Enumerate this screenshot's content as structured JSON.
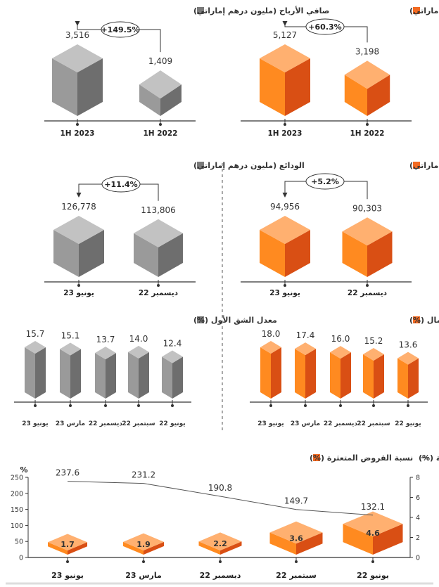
{
  "colors": {
    "orange_front": "#ff8a20",
    "orange_side": "#d94f14",
    "orange_top": "#ffb070",
    "gray_front": "#9a9a9a",
    "gray_side": "#6e6e6e",
    "gray_top": "#c2c2c2",
    "orange_marker": "#f26a22",
    "gray_marker": "#7a7a7a"
  },
  "chart_data": [
    {
      "type": "bar",
      "title": "الدخل التشغيلي (مليون درهم إماراتي)",
      "categories": [
        "1H 2023",
        "1H 2022"
      ],
      "values": [
        5127,
        3198
      ],
      "value_labels": [
        "5,127",
        "3,198"
      ],
      "change": "+60.3%",
      "color": "orange"
    },
    {
      "type": "bar",
      "title": "صافي الأرباح (مليون درهم إماراتي)",
      "categories": [
        "1H 2023",
        "1H 2022"
      ],
      "values": [
        3516,
        1409
      ],
      "value_labels": [
        "3,516",
        "1,409"
      ],
      "change": "+149.5%",
      "color": "gray"
    },
    {
      "type": "bar",
      "title": "القروض (مليون درهم إماراتي)",
      "categories": [
        "يونيو 23",
        "ديسمبر 22"
      ],
      "values": [
        94956,
        90303
      ],
      "value_labels": [
        "94,956",
        "90,303"
      ],
      "change": "+5.2%",
      "color": "orange"
    },
    {
      "type": "bar",
      "title": "الودائع (مليون درهم إماراتي)",
      "categories": [
        "يونيو 23",
        "ديسمبر 22"
      ],
      "values": [
        126778,
        113806
      ],
      "value_labels": [
        "126,778",
        "113,806"
      ],
      "change": "+11.4%",
      "color": "gray"
    },
    {
      "type": "bar",
      "title": "معدل كفاية راس المال (%)",
      "categories": [
        "يونيو 23",
        "مارس 23",
        "ديسمبر 22",
        "سبتمبر 22",
        "يونيو 22"
      ],
      "values": [
        18.0,
        17.4,
        16.0,
        15.2,
        13.6
      ],
      "value_labels": [
        "18.0",
        "17.4",
        "16.0",
        "15.2",
        "13.6"
      ],
      "color": "orange"
    },
    {
      "type": "bar",
      "title": "معدل الشق الأول (%)",
      "categories": [
        "يونيو 23",
        "مارس 23",
        "ديسمبر 22",
        "سبتمبر 22",
        "يونيو 22"
      ],
      "values": [
        15.7,
        15.1,
        13.7,
        14.0,
        12.4
      ],
      "value_labels": [
        "15.7",
        "15.1",
        "13.7",
        "14.0",
        "12.4"
      ],
      "color": "gray"
    },
    {
      "type": "bar",
      "legend": [
        "نسبة القروض المتعثرة (%)",
        "نسبة التغطية (%)"
      ],
      "unit_label": "%",
      "categories": [
        "يونيو 23",
        "مارس 23",
        "ديسمبر 22",
        "سبتمبر 22",
        "يونيو 22"
      ],
      "series": [
        {
          "name": "نسبة القروض المتعثرة (%)",
          "type": "bar",
          "axis": "right",
          "values": [
            1.7,
            1.9,
            2.2,
            3.6,
            4.6
          ],
          "value_labels": [
            "1.7",
            "1.9",
            "2.2",
            "3.6",
            "4.6"
          ]
        },
        {
          "name": "نسبة التغطية (%)",
          "type": "line",
          "axis": "left",
          "values": [
            237.6,
            231.2,
            190.8,
            149.7,
            132.1
          ],
          "value_labels": [
            "237.6",
            "231.2",
            "190.8",
            "149.7",
            "132.1"
          ]
        }
      ],
      "left_axis": {
        "ylim": [
          0,
          250
        ],
        "ticks": [
          "0",
          "50",
          "100",
          "150",
          "200",
          "250"
        ]
      },
      "right_axis": {
        "ylim": [
          0,
          8
        ],
        "ticks": [
          "0",
          "2",
          "4",
          "6",
          "8"
        ]
      }
    }
  ]
}
